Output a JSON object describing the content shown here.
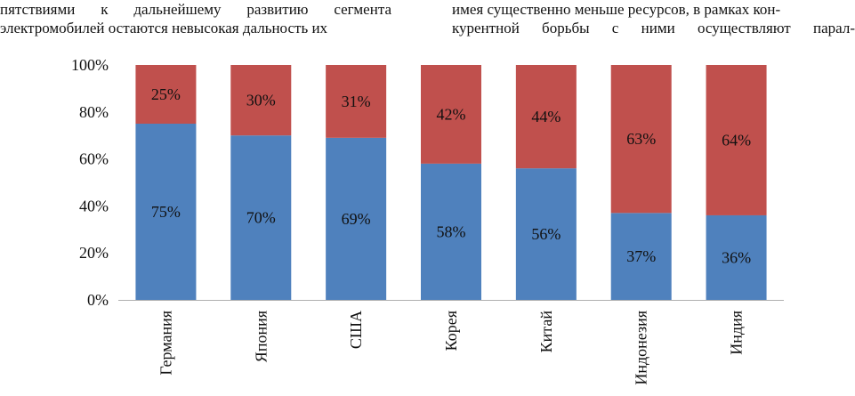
{
  "text": {
    "left_lines": [
      "пятствиями к дальнейшему развитию сегмента",
      "электромобилей остаются невысокая дальность их"
    ],
    "right_lines": [
      "имея существенно меньше ресурсов, в рамках кон-",
      "курентной борьбы с ними осуществляют парал-"
    ]
  },
  "chart_data": {
    "type": "bar",
    "stacked": true,
    "percent": true,
    "categories": [
      "Германия",
      "Япония",
      "США",
      "Корея",
      "Китай",
      "Индонезия",
      "Индия"
    ],
    "series": [
      {
        "values": [
          75,
          70,
          69,
          58,
          56,
          37,
          36
        ],
        "color": "#4f81bd"
      },
      {
        "values": [
          25,
          30,
          31,
          42,
          44,
          63,
          64
        ],
        "color": "#c0504d"
      }
    ],
    "ylim": [
      0,
      100
    ],
    "yticks": [
      "0%",
      "20%",
      "40%",
      "60%",
      "80%",
      "100%"
    ],
    "data_labels": {
      "bottom": [
        "75%",
        "70%",
        "69%",
        "58%",
        "56%",
        "37%",
        "36%"
      ],
      "top": [
        "25%",
        "30%",
        "31%",
        "42%",
        "44%",
        "63%",
        "64%"
      ]
    },
    "grid": false,
    "legend": "none"
  }
}
